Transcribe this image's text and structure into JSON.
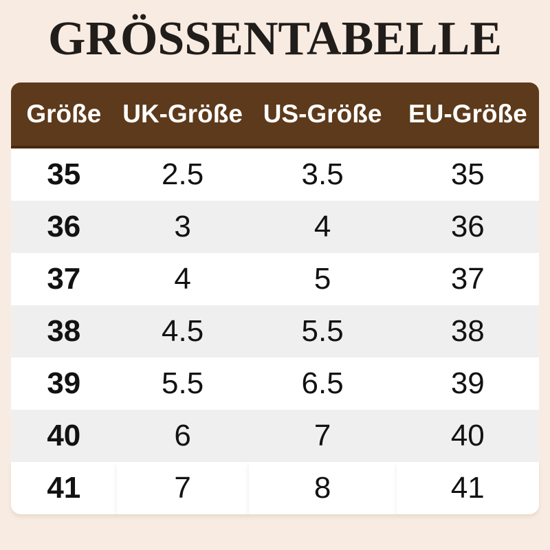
{
  "title": "GRÖSSENTABELLE",
  "chart_data": {
    "type": "table",
    "title": "GRÖSSENTABELLE",
    "columns": [
      "Größe",
      "UK-Größe",
      "US-Größe",
      "EU-Größe"
    ],
    "rows": [
      [
        "35",
        "2.5",
        "3.5",
        "35"
      ],
      [
        "36",
        "3",
        "4",
        "36"
      ],
      [
        "37",
        "4",
        "5",
        "37"
      ],
      [
        "38",
        "4.5",
        "5.5",
        "38"
      ],
      [
        "39",
        "5.5",
        "6.5",
        "39"
      ],
      [
        "40",
        "6",
        "7",
        "40"
      ],
      [
        "41",
        "7",
        "8",
        "41"
      ]
    ],
    "layout": {
      "header_position": "top",
      "alternating_rows": true,
      "first_row_style": "white",
      "grid": false
    }
  },
  "colors": {
    "background": "#f8ece2",
    "header_bg": "#5d3a1b",
    "header_border": "#49290e",
    "header_text": "#ffffff",
    "row_bg": "#ffffff",
    "row_alt_bg": "#efefef",
    "text": "#121212",
    "title_color": "#201d1b"
  }
}
